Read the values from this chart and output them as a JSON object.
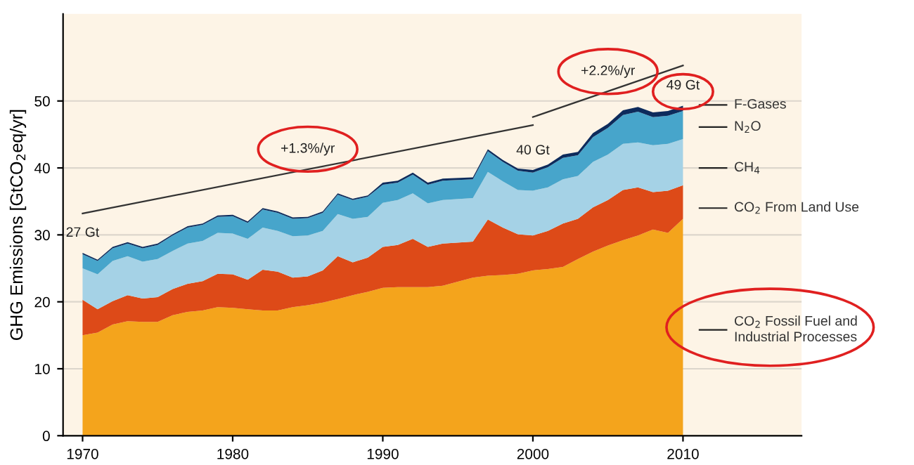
{
  "chart_data": {
    "type": "area",
    "stacked": true,
    "ylabel": "GHG Emissions [GtCO$_{2}$eq/yr]",
    "x": [
      1970,
      1971,
      1972,
      1973,
      1974,
      1975,
      1976,
      1977,
      1978,
      1979,
      1980,
      1981,
      1982,
      1983,
      1984,
      1985,
      1986,
      1987,
      1988,
      1989,
      1990,
      1991,
      1992,
      1993,
      1994,
      1996,
      1997,
      1998,
      1999,
      2000,
      2001,
      2002,
      2003,
      2004,
      2005,
      2006,
      2007,
      2008,
      2009,
      2010
    ],
    "xlim": [
      1968.7,
      2017.9
    ],
    "xticks": [
      1970,
      1980,
      1990,
      2000,
      2010
    ],
    "ylim": [
      0,
      63
    ],
    "yticks": [
      0,
      10,
      20,
      30,
      40,
      50
    ],
    "grid": "y",
    "legend": "right",
    "series": [
      {
        "name": "CO$_{2}$ Fossil Fuel and Industrial Processes",
        "color": "#f4a41c",
        "values": [
          15.0,
          15.4,
          16.6,
          17.1,
          17.0,
          17.0,
          18.0,
          18.5,
          18.7,
          19.2,
          19.1,
          18.9,
          18.7,
          18.7,
          19.2,
          19.5,
          19.9,
          20.4,
          21.0,
          21.5,
          22.1,
          22.2,
          22.2,
          22.2,
          22.4,
          23.6,
          23.9,
          24.0,
          24.2,
          24.7,
          24.9,
          25.2,
          26.4,
          27.5,
          28.4,
          29.2,
          29.9,
          30.8,
          30.3,
          32.4
        ]
      },
      {
        "name": "CO$_{2}$ From Land Use",
        "color": "#dd4a18",
        "values": [
          5.3,
          3.5,
          3.5,
          3.9,
          3.5,
          3.7,
          3.9,
          4.2,
          4.4,
          5.0,
          5.0,
          4.4,
          6.1,
          5.8,
          4.4,
          4.3,
          4.8,
          6.4,
          4.9,
          5.1,
          6.1,
          6.3,
          7.2,
          6.0,
          6.3,
          5.4,
          8.4,
          7.1,
          5.9,
          5.2,
          5.7,
          6.5,
          6.0,
          6.6,
          6.8,
          7.5,
          7.2,
          5.6,
          6.3,
          5.0
        ]
      },
      {
        "name": "CH$_{4}$",
        "color": "#a5d2e6",
        "values": [
          4.7,
          5.2,
          6.0,
          5.8,
          5.5,
          5.7,
          5.7,
          6.0,
          6.0,
          6.1,
          6.1,
          6.1,
          6.3,
          6.1,
          6.2,
          6.1,
          5.9,
          6.3,
          6.5,
          6.1,
          6.6,
          6.7,
          6.8,
          6.5,
          6.5,
          6.5,
          7.1,
          6.9,
          6.6,
          6.7,
          6.5,
          6.6,
          6.4,
          6.8,
          6.8,
          6.9,
          6.7,
          7.0,
          7.0,
          6.9
        ]
      },
      {
        "name": "N$_{2}$O",
        "color": "#47a5cb",
        "values": [
          2.1,
          2.0,
          1.9,
          1.9,
          2.0,
          2.1,
          2.3,
          2.4,
          2.4,
          2.4,
          2.6,
          2.4,
          2.7,
          2.7,
          2.6,
          2.6,
          2.7,
          2.9,
          2.8,
          3.0,
          2.7,
          2.6,
          2.8,
          2.8,
          2.9,
          2.8,
          3.1,
          2.9,
          2.9,
          2.7,
          3.0,
          3.2,
          3.1,
          3.7,
          4.0,
          4.3,
          4.6,
          4.2,
          4.2,
          4.2
        ]
      },
      {
        "name": "F-Gases",
        "color": "#0d2b5c",
        "values": [
          0.2,
          0.2,
          0.2,
          0.2,
          0.2,
          0.2,
          0.2,
          0.2,
          0.2,
          0.2,
          0.2,
          0.2,
          0.2,
          0.2,
          0.2,
          0.2,
          0.2,
          0.2,
          0.2,
          0.2,
          0.3,
          0.3,
          0.3,
          0.3,
          0.3,
          0.3,
          0.3,
          0.3,
          0.3,
          0.4,
          0.4,
          0.5,
          0.5,
          0.6,
          0.6,
          0.7,
          0.7,
          0.7,
          0.7,
          0.8
        ]
      },
      {
        "type": "line",
        "color": "#333333",
        "x": [
          1970,
          2000
        ],
        "values": [
          33.2,
          46.4
        ]
      },
      {
        "type": "line",
        "color": "#333333",
        "x": [
          2000,
          2010
        ],
        "values": [
          47.6,
          55.3
        ]
      }
    ],
    "annotations": [
      {
        "text": "27 Gt",
        "x": 1970,
        "y": 27.3
      },
      {
        "text": "40 Gt",
        "x": 2000,
        "y": 39.6
      },
      {
        "text": "49 Gt",
        "x": 2010,
        "y": 49.3
      },
      {
        "text": "+1.3%/yr",
        "x": 1985,
        "y": 39.8
      },
      {
        "text": "+2.2%/yr",
        "x": 2005,
        "y": 51.4
      }
    ]
  }
}
